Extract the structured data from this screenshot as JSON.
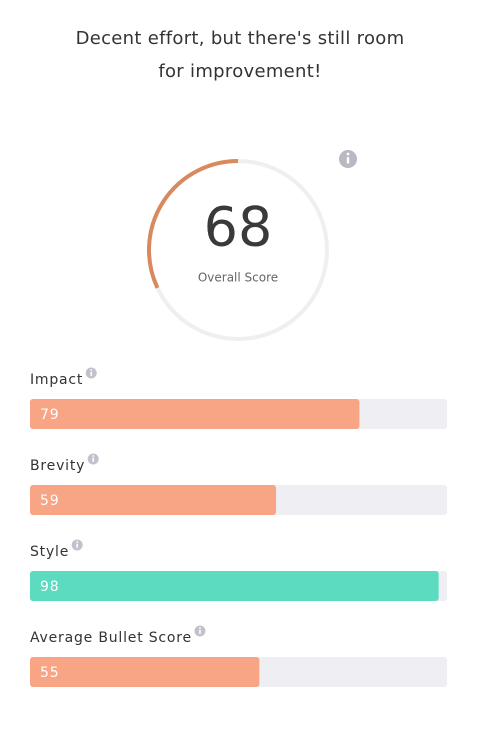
{
  "message": "Decent effort, but there's still room for improvement!",
  "score": 68,
  "score_label": "Overall Score",
  "score_color": "#d9895e",
  "range": [
    0,
    100
  ],
  "metrics": [
    {
      "name": "Impact",
      "value": 79,
      "color": "#f7a584"
    },
    {
      "name": "Brevity",
      "value": 59,
      "color": "#f7a584"
    },
    {
      "name": "Style",
      "value": 98,
      "color": "#5ddbc0"
    },
    {
      "name": "Average Bullet Score",
      "value": 55,
      "color": "#f7a584"
    }
  ]
}
